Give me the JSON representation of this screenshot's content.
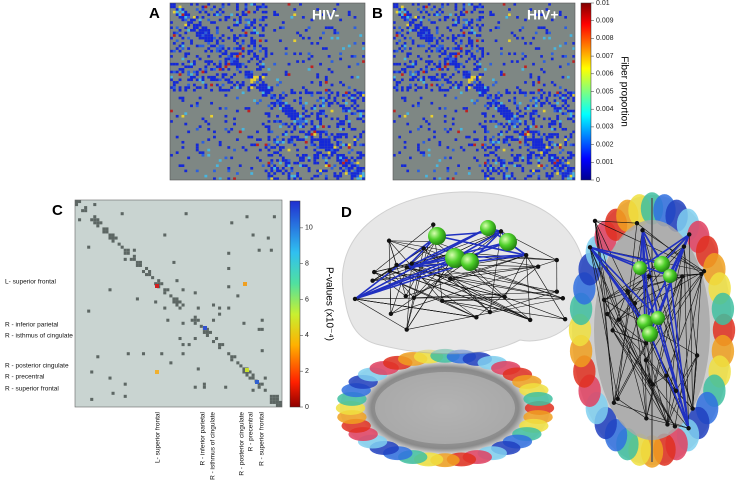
{
  "panels": [
    {
      "label": "A",
      "title": "HIV-"
    },
    {
      "label": "B",
      "title": "HIV+"
    },
    {
      "label": "C"
    },
    {
      "label": "D"
    }
  ],
  "colorbar_ab": {
    "label": "Fiber proportion",
    "lim": [
      0,
      0.01
    ],
    "ticks": [
      0,
      0.001,
      0.002,
      0.003,
      0.004,
      0.005,
      0.006,
      0.007,
      0.008,
      0.009,
      0.01
    ]
  },
  "colorbar_c": {
    "label": "P-values (x10⁻⁴)",
    "lim": [
      0,
      11.5
    ],
    "ticks": [
      0,
      2,
      4,
      6,
      8,
      10
    ]
  },
  "matrix_c": {
    "row_labels": [
      "L- superior frontal",
      "R - inferior parietal",
      "R - isthmus of  cingulate",
      "R - posterior cingulate",
      "R - precentral",
      "R - superior frontal"
    ],
    "col_labels": [
      "L- superior frontal",
      "R - inferior parietal",
      "R - isthmus of  cingulate",
      "R - posterior cingulate",
      "R - precentral",
      "R - superior frontal"
    ]
  }
}
